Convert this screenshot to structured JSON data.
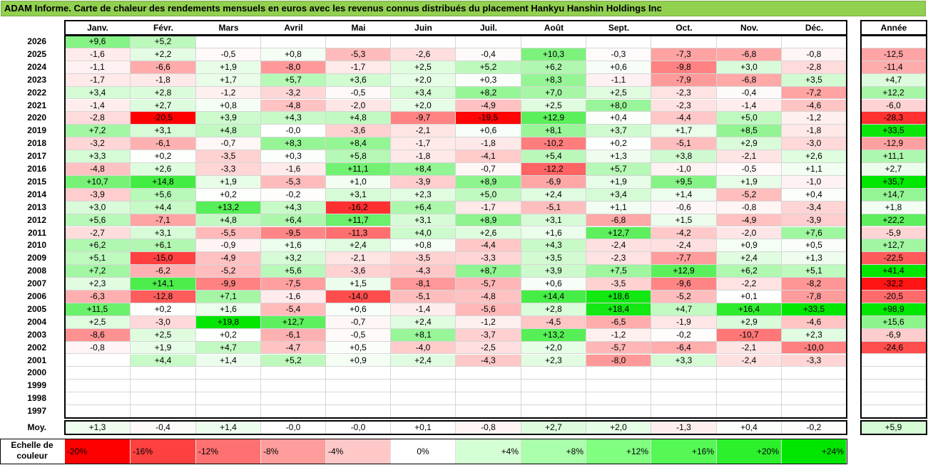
{
  "title": "ADAM Informe. Carte de chaleur des rendements mensuels en euros avec les revenus connus distribués du placement Hankyu Hanshin Holdings Inc",
  "chart_data": {
    "type": "heatmap",
    "columns": [
      "Janv.",
      "Févr.",
      "Mars",
      "Avril",
      "Mai",
      "Juin",
      "Juil.",
      "Août",
      "Sept.",
      "Oct.",
      "Nov.",
      "Déc."
    ],
    "year_label": "Année",
    "rows": [
      {
        "year": "2026",
        "months": [
          "+9,6",
          "+5,2",
          "",
          "",
          "",
          "",
          "",
          "",
          "",
          "",
          "",
          ""
        ],
        "total": ""
      },
      {
        "year": "2025",
        "months": [
          "-1,6",
          "+2,2",
          "-0,5",
          "+0,8",
          "-5,3",
          "-2,6",
          "-0,4",
          "+10,3",
          "-0,3",
          "-7,3",
          "-6,8",
          "-0,8"
        ],
        "total": "-12,5"
      },
      {
        "year": "2024",
        "months": [
          "-1,1",
          "-6,6",
          "+1,9",
          "-8,0",
          "-1,7",
          "+2,5",
          "+5,2",
          "+6,2",
          "+0,6",
          "-9,8",
          "+3,0",
          "-2,8"
        ],
        "total": "-11,4"
      },
      {
        "year": "2023",
        "months": [
          "-1,7",
          "-1,8",
          "+1,7",
          "+5,7",
          "+3,6",
          "+2,0",
          "+0,3",
          "+8,3",
          "-1,1",
          "-7,9",
          "-6,8",
          "+3,5"
        ],
        "total": "+4,7"
      },
      {
        "year": "2022",
        "months": [
          "+3,4",
          "+2,8",
          "-1,2",
          "-3,2",
          "-0,5",
          "+3,4",
          "+8,2",
          "+7,0",
          "+2,5",
          "-2,3",
          "-0,4",
          "-7,2"
        ],
        "total": "+12,2"
      },
      {
        "year": "2021",
        "months": [
          "-1,4",
          "+2,7",
          "+0,8",
          "-4,8",
          "-2,0",
          "+2,0",
          "-4,9",
          "+2,5",
          "+8,0",
          "-2,3",
          "-1,4",
          "-4,6"
        ],
        "total": "-6,0"
      },
      {
        "year": "2020",
        "months": [
          "-2,8",
          "-20,5",
          "+3,9",
          "+4,3",
          "+4,8",
          "-9,7",
          "-19,5",
          "+12,9",
          "+0,4",
          "-4,4",
          "+5,0",
          "-1,2"
        ],
        "total": "-28,3"
      },
      {
        "year": "2019",
        "months": [
          "+7,2",
          "+3,1",
          "+4,8",
          "-0,0",
          "-3,6",
          "-2,1",
          "+0,6",
          "+8,1",
          "+3,7",
          "+1,7",
          "+8,5",
          "-1,8"
        ],
        "total": "+33,5"
      },
      {
        "year": "2018",
        "months": [
          "-3,2",
          "-6,1",
          "-0,7",
          "+8,3",
          "+8,4",
          "-1,7",
          "-1,8",
          "-10,2",
          "+0,2",
          "-5,1",
          "+2,9",
          "-3,0"
        ],
        "total": "-12,9"
      },
      {
        "year": "2017",
        "months": [
          "+3,3",
          "+0,2",
          "-3,5",
          "+0,3",
          "+5,8",
          "-1,8",
          "-4,1",
          "+5,4",
          "+1,3",
          "+3,8",
          "-2,1",
          "+2,6"
        ],
        "total": "+11,1"
      },
      {
        "year": "2016",
        "months": [
          "-4,8",
          "+2,6",
          "-3,3",
          "-1,6",
          "+11,1",
          "+8,4",
          "-0,7",
          "-12,2",
          "+5,7",
          "-1,0",
          "-0,5",
          "+1,1"
        ],
        "total": "+2,7"
      },
      {
        "year": "2015",
        "months": [
          "+10,7",
          "+14,8",
          "+1,9",
          "-5,3",
          "+1,0",
          "-3,9",
          "+8,9",
          "-6,9",
          "+1,9",
          "+9,5",
          "+1,9",
          "-1,0"
        ],
        "total": "+35,7"
      },
      {
        "year": "2014",
        "months": [
          "-3,9",
          "+5,6",
          "+0,2",
          "-0,2",
          "+3,1",
          "+2,3",
          "+5,0",
          "+2,4",
          "+3,4",
          "+1,4",
          "-5,2",
          "+0,4"
        ],
        "total": "+14,7"
      },
      {
        "year": "2013",
        "months": [
          "+3,0",
          "+4,4",
          "+13,2",
          "+4,3",
          "-16,2",
          "+6,4",
          "-1,7",
          "-5,1",
          "+1,1",
          "-0,6",
          "-0,8",
          "-3,4"
        ],
        "total": "+1,8"
      },
      {
        "year": "2012",
        "months": [
          "+5,6",
          "-7,1",
          "+4,8",
          "+6,4",
          "+11,7",
          "+3,1",
          "+8,9",
          "+3,1",
          "-6,8",
          "+1,5",
          "-4,9",
          "-3,9"
        ],
        "total": "+22,2"
      },
      {
        "year": "2011",
        "months": [
          "-2,7",
          "+3,1",
          "-5,5",
          "-9,5",
          "-11,3",
          "+4,0",
          "+2,6",
          "+1,6",
          "+12,7",
          "-4,2",
          "-2,0",
          "+7,6"
        ],
        "total": "-5,9"
      },
      {
        "year": "2010",
        "months": [
          "+6,2",
          "+6,1",
          "-0,9",
          "+1,6",
          "+2,4",
          "+0,8",
          "-4,4",
          "+4,3",
          "-2,4",
          "-2,4",
          "+0,9",
          "+0,5"
        ],
        "total": "+12,7"
      },
      {
        "year": "2009",
        "months": [
          "+5,1",
          "-15,0",
          "-4,9",
          "+3,2",
          "-2,1",
          "-3,5",
          "-3,3",
          "+3,5",
          "-2,3",
          "-7,7",
          "+2,4",
          "+1,3"
        ],
        "total": "-22,5"
      },
      {
        "year": "2008",
        "months": [
          "+7,2",
          "-6,2",
          "-5,2",
          "+5,6",
          "-3,6",
          "-4,3",
          "+8,7",
          "+3,9",
          "+7,5",
          "+12,9",
          "+6,2",
          "+5,1"
        ],
        "total": "+41,4"
      },
      {
        "year": "2007",
        "months": [
          "+2,3",
          "+14,1",
          "-9,9",
          "-7,5",
          "+1,5",
          "-8,1",
          "-5,7",
          "+0,6",
          "-3,5",
          "-9,6",
          "-2,2",
          "-8,2"
        ],
        "total": "-32,2"
      },
      {
        "year": "2006",
        "months": [
          "-6,3",
          "-12,8",
          "+7,1",
          "-1,6",
          "-14,0",
          "-5,1",
          "-4,8",
          "+14,4",
          "+18,6",
          "-5,2",
          "+0,1",
          "-7,8"
        ],
        "total": "-20,5"
      },
      {
        "year": "2005",
        "months": [
          "+11,5",
          "+0,2",
          "+1,6",
          "-5,4",
          "+0,6",
          "-1,4",
          "-5,6",
          "+2,8",
          "+18,4",
          "+4,7",
          "+16,4",
          "+33,5"
        ],
        "total": "+98,9"
      },
      {
        "year": "2004",
        "months": [
          "+2,5",
          "-3,0",
          "+19,8",
          "+12,7",
          "-0,7",
          "+2,4",
          "-1,2",
          "-4,5",
          "-6,5",
          "-1,9",
          "+2,9",
          "-4,6"
        ],
        "total": "+15,6"
      },
      {
        "year": "2003",
        "months": [
          "-8,6",
          "+2,5",
          "+0,2",
          "-6,1",
          "-0,5",
          "+8,1",
          "-3,7",
          "+13,2",
          "-1,2",
          "-0,2",
          "-10,7",
          "+2,3"
        ],
        "total": "-6,9"
      },
      {
        "year": "2002",
        "months": [
          "-0,8",
          "+1,9",
          "+4,7",
          "-4,7",
          "+0,5",
          "-4,0",
          "-2,5",
          "+2,0",
          "-5,7",
          "-6,4",
          "-2,1",
          "-10,0"
        ],
        "total": "-24,6"
      },
      {
        "year": "2001",
        "months": [
          "",
          "+4,4",
          "+1,4",
          "+5,2",
          "+0,9",
          "+2,4",
          "-4,3",
          "+2,3",
          "-8,0",
          "+3,3",
          "-2,4",
          "-3,3"
        ],
        "total": ""
      },
      {
        "year": "2000",
        "months": [
          "",
          "",
          "",
          "",
          "",
          "",
          "",
          "",
          "",
          "",
          "",
          ""
        ],
        "total": ""
      },
      {
        "year": "1999",
        "months": [
          "",
          "",
          "",
          "",
          "",
          "",
          "",
          "",
          "",
          "",
          "",
          ""
        ],
        "total": ""
      },
      {
        "year": "1998",
        "months": [
          "",
          "",
          "",
          "",
          "",
          "",
          "",
          "",
          "",
          "",
          "",
          ""
        ],
        "total": ""
      },
      {
        "year": "1997",
        "months": [
          "",
          "",
          "",
          "",
          "",
          "",
          "",
          "",
          "",
          "",
          "",
          ""
        ],
        "total": ""
      }
    ],
    "average_label": "Moy.",
    "average": [
      "+1,3",
      "-0,4",
      "+1,4",
      "-0,0",
      "-0,0",
      "+0,1",
      "-0,8",
      "+2,7",
      "+2,0",
      "-1,3",
      "+0,4",
      "-0,2"
    ],
    "average_total": "+5,9",
    "scale_label": [
      "Echelle de",
      "couleur"
    ],
    "scale": [
      {
        "label": "-20%",
        "color": "#ff0000"
      },
      {
        "label": "-16%",
        "color": "#ff4040"
      },
      {
        "label": "-12%",
        "color": "#ff7070"
      },
      {
        "label": "-8%",
        "color": "#ff9c9c"
      },
      {
        "label": "-4%",
        "color": "#ffc8c8"
      },
      {
        "label": "0%",
        "color": "#ffffff"
      },
      {
        "label": "+4%",
        "color": "#d4ffd4"
      },
      {
        "label": "+8%",
        "color": "#aaffaa"
      },
      {
        "label": "+12%",
        "color": "#80ff80"
      },
      {
        "label": "+16%",
        "color": "#55f855"
      },
      {
        "label": "+20%",
        "color": "#2bf02b"
      },
      {
        "label": "+24%",
        "color": "#00e600"
      }
    ]
  }
}
